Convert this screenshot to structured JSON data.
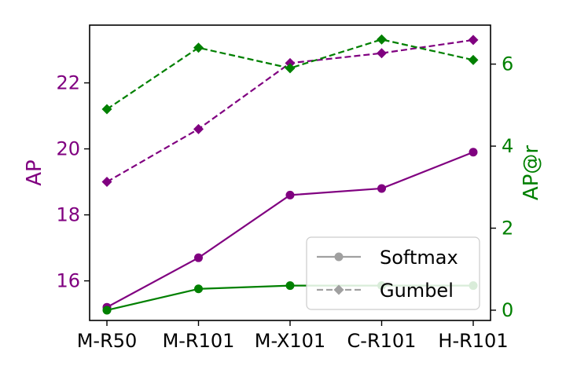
{
  "chart_data": {
    "type": "line",
    "categories": [
      "M-R50",
      "M-R101",
      "M-X101",
      "C-R101",
      "H-R101"
    ],
    "left_axis": {
      "label": "AP",
      "color": "#800080",
      "ylim": [
        14.8,
        23.75
      ],
      "ticks": [
        16,
        18,
        20,
        22
      ],
      "tick_labels": [
        "16",
        "18",
        "20",
        "22"
      ]
    },
    "right_axis": {
      "label": "AP@r",
      "color": "#008000",
      "ylim": [
        -0.25,
        6.95
      ],
      "ticks": [
        0,
        2,
        4,
        6
      ],
      "tick_labels": [
        "0",
        "2",
        "4",
        "6"
      ]
    },
    "series": [
      {
        "axis": "left",
        "style": "solid",
        "marker": "circle",
        "color": "#800080",
        "values": [
          15.2,
          16.7,
          18.6,
          18.8,
          19.9
        ]
      },
      {
        "axis": "left",
        "style": "dashed",
        "marker": "diamond",
        "color": "#800080",
        "values": [
          19.0,
          20.6,
          22.6,
          22.9,
          23.3
        ]
      },
      {
        "axis": "right",
        "style": "solid",
        "marker": "circle",
        "color": "#008000",
        "values": [
          0.0,
          0.52,
          0.6,
          0.6,
          0.6
        ]
      },
      {
        "axis": "right",
        "style": "dashed",
        "marker": "diamond",
        "color": "#008000",
        "values": [
          4.9,
          6.4,
          5.9,
          6.6,
          6.1
        ]
      }
    ],
    "legend": {
      "position": "bottom-right",
      "entries": [
        {
          "label": "Softmax",
          "style": "solid",
          "marker": "circle",
          "color": "#a0a0a0"
        },
        {
          "label": "Gumbel",
          "style": "dashed",
          "marker": "diamond",
          "color": "#a0a0a0"
        }
      ]
    },
    "grid": false
  }
}
